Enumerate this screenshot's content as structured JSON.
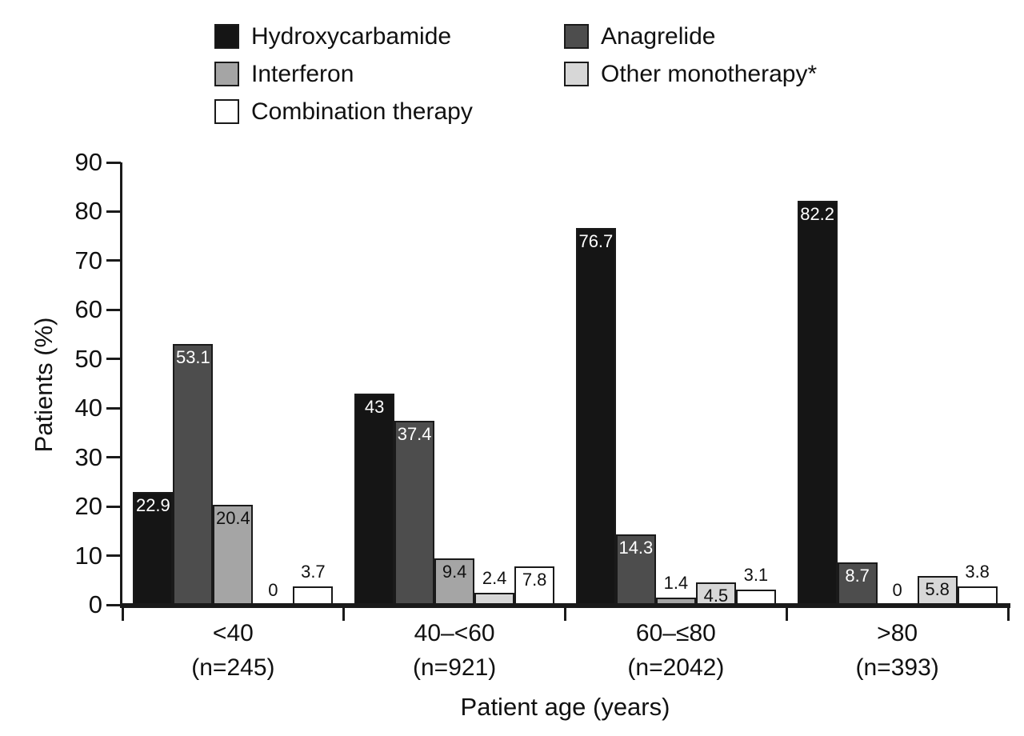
{
  "chart_data": {
    "type": "bar",
    "title": "",
    "xlabel": "Patient age (years)",
    "ylabel": "Patients (%)",
    "ylim": [
      0,
      90
    ],
    "yticks": [
      0,
      10,
      20,
      30,
      40,
      50,
      60,
      70,
      80,
      90
    ],
    "ytick_labels": [
      "0",
      "10",
      "20",
      "30",
      "40",
      "50",
      "60",
      "70",
      "80",
      "90"
    ],
    "grid": "off",
    "legend_position": "top",
    "categories": [
      "<40",
      "40–<60",
      "60–≤80",
      ">80"
    ],
    "category_counts": [
      "(n=245)",
      "(n=921)",
      "(n=2042)",
      "(n=393)"
    ],
    "series": [
      {
        "name": "Hydroxycarbamide",
        "color": "#151515",
        "label_text_color": "#ffffff",
        "values": [
          22.9,
          43,
          76.7,
          82.2
        ],
        "labels": [
          "22.9",
          "43",
          "76.7",
          "82.2"
        ]
      },
      {
        "name": "Anagrelide",
        "color": "#4d4d4d",
        "label_text_color": "#ffffff",
        "values": [
          53.1,
          37.4,
          14.3,
          8.7
        ],
        "labels": [
          "53.1",
          "37.4",
          "14.3",
          "8.7"
        ]
      },
      {
        "name": "Interferon",
        "color": "#a5a5a5",
        "label_text_color": "#111111",
        "values": [
          20.4,
          9.4,
          1.4,
          0
        ],
        "labels": [
          "20.4",
          "9.4",
          "1.4",
          "0"
        ]
      },
      {
        "name": "Other monotherapy*",
        "color": "#d7d7d7",
        "label_text_color": "#111111",
        "values": [
          0,
          2.4,
          4.5,
          5.8
        ],
        "labels": [
          "0",
          "2.4",
          "4.5",
          "5.8"
        ]
      },
      {
        "name": "Combination therapy",
        "color": "#ffffff",
        "label_text_color": "#111111",
        "values": [
          3.7,
          7.8,
          3.1,
          3.8
        ],
        "labels": [
          "3.7",
          "7.8",
          "3.1",
          "3.8"
        ]
      }
    ]
  },
  "colors": {
    "axis": "#1a1a1a",
    "background": "#ffffff",
    "bar_border": "#1a1a1a"
  }
}
